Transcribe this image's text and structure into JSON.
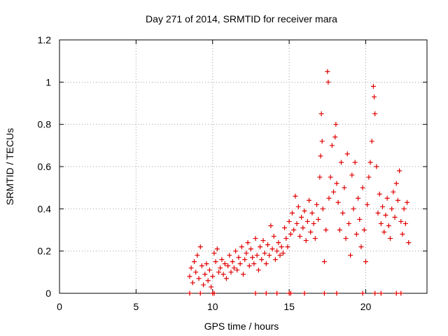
{
  "chart_data": {
    "type": "scatter",
    "title": "Day 271 of 2014, SRMTID for receiver mara",
    "xlabel": "GPS time / hours",
    "ylabel": "SRMTID / TECUs",
    "xlim": [
      0,
      24
    ],
    "ylim": [
      0,
      1.2
    ],
    "xticks": [
      0,
      5,
      10,
      15,
      20
    ],
    "yticks": [
      0,
      0.2,
      0.4,
      0.6,
      0.8,
      1,
      1.2
    ],
    "xtick_labels": [
      "0",
      "5",
      "10",
      "15",
      "20"
    ],
    "ytick_labels": [
      "0",
      "0.2",
      "0.4",
      "0.6",
      "0.8",
      "1",
      "1.2"
    ],
    "grid": true,
    "marker": "+",
    "series": [
      {
        "name": "SRMTID",
        "color": "#e00000",
        "points": [
          [
            8.5,
            0.08
          ],
          [
            8.6,
            0.12
          ],
          [
            8.7,
            0.05
          ],
          [
            8.8,
            0.15
          ],
          [
            8.9,
            0.1
          ],
          [
            9.0,
            0.18
          ],
          [
            9.1,
            0.07
          ],
          [
            9.2,
            0.22
          ],
          [
            9.3,
            0.13
          ],
          [
            9.4,
            0.04
          ],
          [
            9.5,
            0.09
          ],
          [
            9.6,
            0.14
          ],
          [
            9.7,
            0.06
          ],
          [
            9.8,
            0.11
          ],
          [
            9.9,
            0.03
          ],
          [
            10.0,
            0.08
          ],
          [
            10.1,
            0.19
          ],
          [
            10.2,
            0.15
          ],
          [
            10.3,
            0.21
          ],
          [
            10.4,
            0.1
          ],
          [
            10.5,
            0.12
          ],
          [
            10.6,
            0.16
          ],
          [
            10.7,
            0.09
          ],
          [
            10.8,
            0.14
          ],
          [
            10.9,
            0.07
          ],
          [
            11.0,
            0.13
          ],
          [
            11.1,
            0.18
          ],
          [
            11.2,
            0.1
          ],
          [
            11.3,
            0.15
          ],
          [
            11.4,
            0.12
          ],
          [
            11.5,
            0.2
          ],
          [
            11.6,
            0.11
          ],
          [
            11.7,
            0.17
          ],
          [
            11.8,
            0.14
          ],
          [
            11.9,
            0.22
          ],
          [
            12.0,
            0.09
          ],
          [
            12.1,
            0.16
          ],
          [
            12.2,
            0.19
          ],
          [
            12.3,
            0.24
          ],
          [
            12.4,
            0.13
          ],
          [
            12.5,
            0.21
          ],
          [
            12.6,
            0.17
          ],
          [
            12.7,
            0.14
          ],
          [
            12.8,
            0.26
          ],
          [
            12.9,
            0.18
          ],
          [
            13.0,
            0.11
          ],
          [
            13.1,
            0.22
          ],
          [
            13.2,
            0.16
          ],
          [
            13.3,
            0.25
          ],
          [
            13.4,
            0.19
          ],
          [
            13.5,
            0.14
          ],
          [
            13.6,
            0.23
          ],
          [
            13.7,
            0.18
          ],
          [
            13.8,
            0.32
          ],
          [
            13.9,
            0.21
          ],
          [
            14.0,
            0.27
          ],
          [
            14.1,
            0.16
          ],
          [
            14.2,
            0.2
          ],
          [
            14.3,
            0.24
          ],
          [
            14.4,
            0.18
          ],
          [
            14.5,
            0.22
          ],
          [
            14.6,
            0.19
          ],
          [
            14.7,
            0.31
          ],
          [
            14.8,
            0.26
          ],
          [
            14.9,
            0.22
          ],
          [
            15.0,
            0.34
          ],
          [
            15.1,
            0.28
          ],
          [
            15.2,
            0.38
          ],
          [
            15.3,
            0.3
          ],
          [
            15.4,
            0.46
          ],
          [
            15.5,
            0.33
          ],
          [
            15.6,
            0.41
          ],
          [
            15.7,
            0.27
          ],
          [
            15.8,
            0.36
          ],
          [
            15.9,
            0.31
          ],
          [
            16.0,
            0.39
          ],
          [
            16.1,
            0.25
          ],
          [
            16.2,
            0.34
          ],
          [
            16.3,
            0.44
          ],
          [
            16.4,
            0.29
          ],
          [
            16.5,
            0.38
          ],
          [
            16.6,
            0.33
          ],
          [
            16.7,
            0.26
          ],
          [
            16.8,
            0.42
          ],
          [
            16.9,
            0.35
          ],
          [
            17.0,
            0.55
          ],
          [
            17.05,
            0.65
          ],
          [
            17.1,
            0.85
          ],
          [
            17.15,
            0.72
          ],
          [
            17.2,
            0.4
          ],
          [
            17.3,
            0.15
          ],
          [
            17.4,
            0.3
          ],
          [
            17.5,
            1.05
          ],
          [
            17.55,
            1.0
          ],
          [
            17.6,
            0.45
          ],
          [
            17.7,
            0.55
          ],
          [
            17.8,
            0.7
          ],
          [
            17.9,
            0.48
          ],
          [
            18.0,
            0.74
          ],
          [
            18.05,
            0.8
          ],
          [
            18.1,
            0.52
          ],
          [
            18.2,
            0.43
          ],
          [
            18.3,
            0.3
          ],
          [
            18.4,
            0.62
          ],
          [
            18.5,
            0.38
          ],
          [
            18.6,
            0.5
          ],
          [
            18.7,
            0.26
          ],
          [
            18.8,
            0.66
          ],
          [
            18.9,
            0.33
          ],
          [
            19.0,
            0.18
          ],
          [
            19.1,
            0.56
          ],
          [
            19.2,
            0.4
          ],
          [
            19.3,
            0.62
          ],
          [
            19.4,
            0.28
          ],
          [
            19.5,
            0.45
          ],
          [
            19.6,
            0.35
          ],
          [
            19.7,
            0.22
          ],
          [
            19.8,
            0.5
          ],
          [
            19.9,
            0.3
          ],
          [
            20.0,
            0.15
          ],
          [
            20.1,
            0.42
          ],
          [
            20.2,
            0.55
          ],
          [
            20.3,
            0.62
          ],
          [
            20.4,
            0.72
          ],
          [
            20.5,
            0.98
          ],
          [
            20.55,
            0.93
          ],
          [
            20.6,
            0.85
          ],
          [
            20.7,
            0.6
          ],
          [
            20.8,
            0.38
          ],
          [
            20.9,
            0.47
          ],
          [
            21.0,
            0.33
          ],
          [
            21.1,
            0.41
          ],
          [
            21.2,
            0.29
          ],
          [
            21.3,
            0.37
          ],
          [
            21.4,
            0.45
          ],
          [
            21.5,
            0.32
          ],
          [
            21.6,
            0.26
          ],
          [
            21.7,
            0.4
          ],
          [
            21.8,
            0.48
          ],
          [
            21.9,
            0.36
          ],
          [
            22.0,
            0.52
          ],
          [
            22.1,
            0.44
          ],
          [
            22.2,
            0.58
          ],
          [
            22.3,
            0.34
          ],
          [
            22.4,
            0.28
          ],
          [
            22.5,
            0.4
          ],
          [
            22.6,
            0.33
          ],
          [
            22.7,
            0.43
          ],
          [
            22.8,
            0.24
          ]
        ],
        "zero_points": [
          8.5,
          9.2,
          10.0,
          10.1,
          12.8,
          13.5,
          14.2,
          15.0,
          15.1,
          16.0,
          17.3,
          18.1,
          19.8,
          20.6,
          21.0,
          22.0,
          22.3
        ]
      }
    ]
  }
}
